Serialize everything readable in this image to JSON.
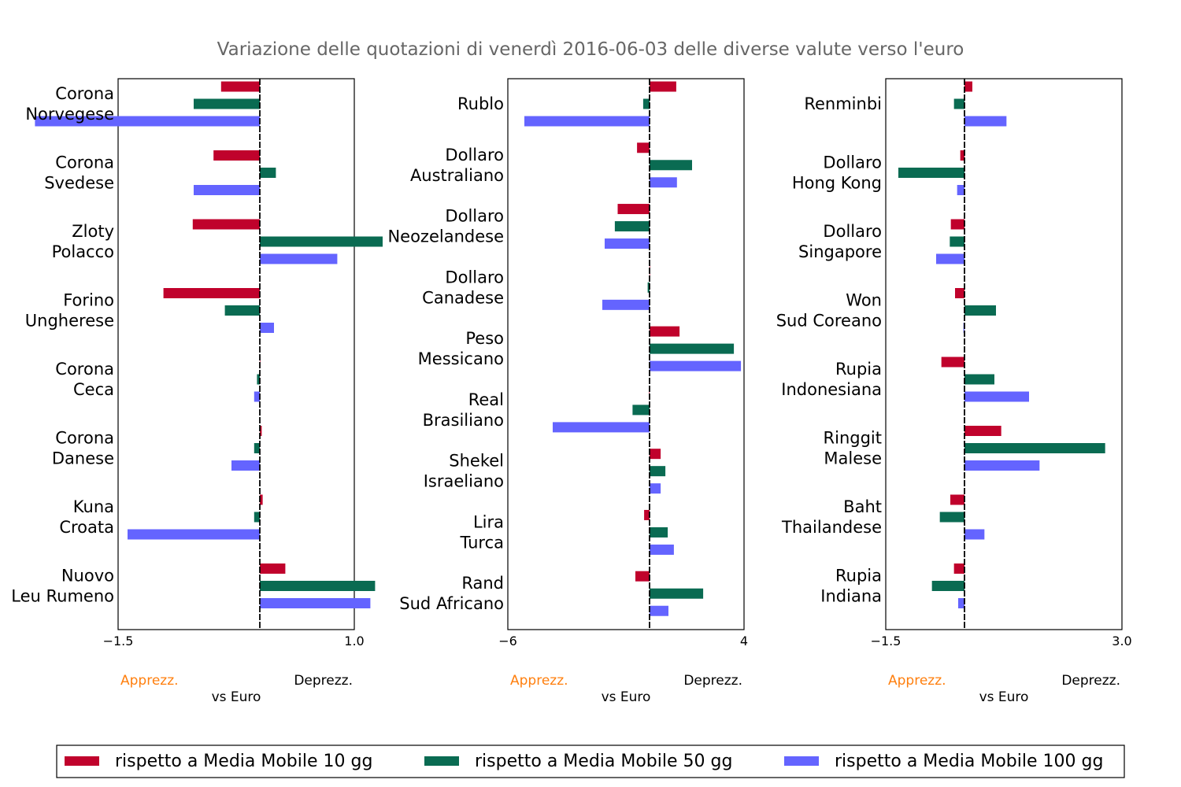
{
  "chart_data": {
    "type": "bar",
    "orientation": "horizontal",
    "title": "Variazione delle quotazioni di venerdì 2016-06-03 delle diverse valute verso l'euro",
    "series_names": [
      "rispetto a Media Mobile 10 gg",
      "rispetto a Media Mobile 50 gg",
      "rispetto a Media Mobile 100 gg"
    ],
    "colors": [
      "#c0022c",
      "#0a6b52",
      "#6464ff"
    ],
    "legend_position": "bottom",
    "grid": false,
    "panels": [
      {
        "xlim": [
          -1.5,
          1.0
        ],
        "ticks": [
          "−1.5",
          "1.0"
        ],
        "xlabel": "vs Euro",
        "left_annotation": "Apprezz.",
        "right_annotation": "Deprezz.",
        "categories": [
          [
            "Corona",
            "Norvegese"
          ],
          [
            "Corona",
            "Svedese"
          ],
          [
            "Zloty",
            "Polacco"
          ],
          [
            "Forino",
            "Ungherese"
          ],
          [
            "Corona",
            "Ceca"
          ],
          [
            "Corona",
            "Danese"
          ],
          [
            "Kuna",
            "Croata"
          ],
          [
            "Nuovo",
            "Leu Rumeno"
          ]
        ],
        "values": [
          [
            -0.41,
            -0.7,
            -2.38
          ],
          [
            -0.49,
            0.17,
            -0.7
          ],
          [
            -0.71,
            1.3,
            0.82
          ],
          [
            -1.02,
            -0.37,
            0.15
          ],
          [
            0.0,
            -0.03,
            -0.06
          ],
          [
            0.02,
            -0.06,
            -0.3
          ],
          [
            0.03,
            -0.06,
            -1.4
          ],
          [
            0.27,
            1.22,
            1.17
          ]
        ]
      },
      {
        "xlim": [
          -6,
          4
        ],
        "ticks": [
          "−6",
          "4"
        ],
        "xlabel": "vs Euro",
        "left_annotation": "Apprezz.",
        "right_annotation": "Deprezz.",
        "categories": [
          [
            "Rublo"
          ],
          [
            "Dollaro",
            "Australiano"
          ],
          [
            "Dollaro",
            "Neozelandese"
          ],
          [
            "Dollaro",
            "Canadese"
          ],
          [
            "Peso",
            "Messicano"
          ],
          [
            "Real",
            "Brasiliano"
          ],
          [
            "Shekel",
            "Israeliano"
          ],
          [
            "Lira",
            "Turca"
          ],
          [
            "Rand",
            "Sud Africano"
          ]
        ],
        "values": [
          [
            1.13,
            -0.27,
            -5.3
          ],
          [
            -0.53,
            1.8,
            1.16
          ],
          [
            -1.35,
            -1.47,
            -1.9
          ],
          [
            0.0,
            -0.08,
            -2.0
          ],
          [
            1.27,
            3.57,
            3.87
          ],
          [
            -0.02,
            -0.72,
            -4.1
          ],
          [
            0.47,
            0.67,
            0.47
          ],
          [
            -0.23,
            0.77,
            1.03
          ],
          [
            -0.6,
            2.27,
            0.8
          ]
        ]
      },
      {
        "xlim": [
          -1.5,
          3.0
        ],
        "ticks": [
          "−1.5",
          "3.0"
        ],
        "xlabel": "vs Euro",
        "left_annotation": "Apprezz.",
        "right_annotation": "Deprezz.",
        "categories": [
          [
            "Renminbi"
          ],
          [
            "Dollaro",
            "Hong Kong"
          ],
          [
            "Dollaro",
            "Singapore"
          ],
          [
            "Won",
            "Sud Coreano"
          ],
          [
            "Rupia",
            "Indonesiana"
          ],
          [
            "Ringgit",
            "Malese"
          ],
          [
            "Baht",
            "Thailandese"
          ],
          [
            "Rupia",
            "Indiana"
          ]
        ],
        "values": [
          [
            0.15,
            -0.2,
            0.8
          ],
          [
            -0.08,
            -1.26,
            -0.14
          ],
          [
            -0.26,
            -0.28,
            -0.54
          ],
          [
            -0.18,
            0.6,
            -0.02
          ],
          [
            -0.44,
            0.57,
            1.23
          ],
          [
            0.7,
            2.68,
            1.43
          ],
          [
            -0.27,
            -0.47,
            0.38
          ],
          [
            -0.2,
            -0.62,
            -0.12
          ]
        ]
      }
    ]
  }
}
